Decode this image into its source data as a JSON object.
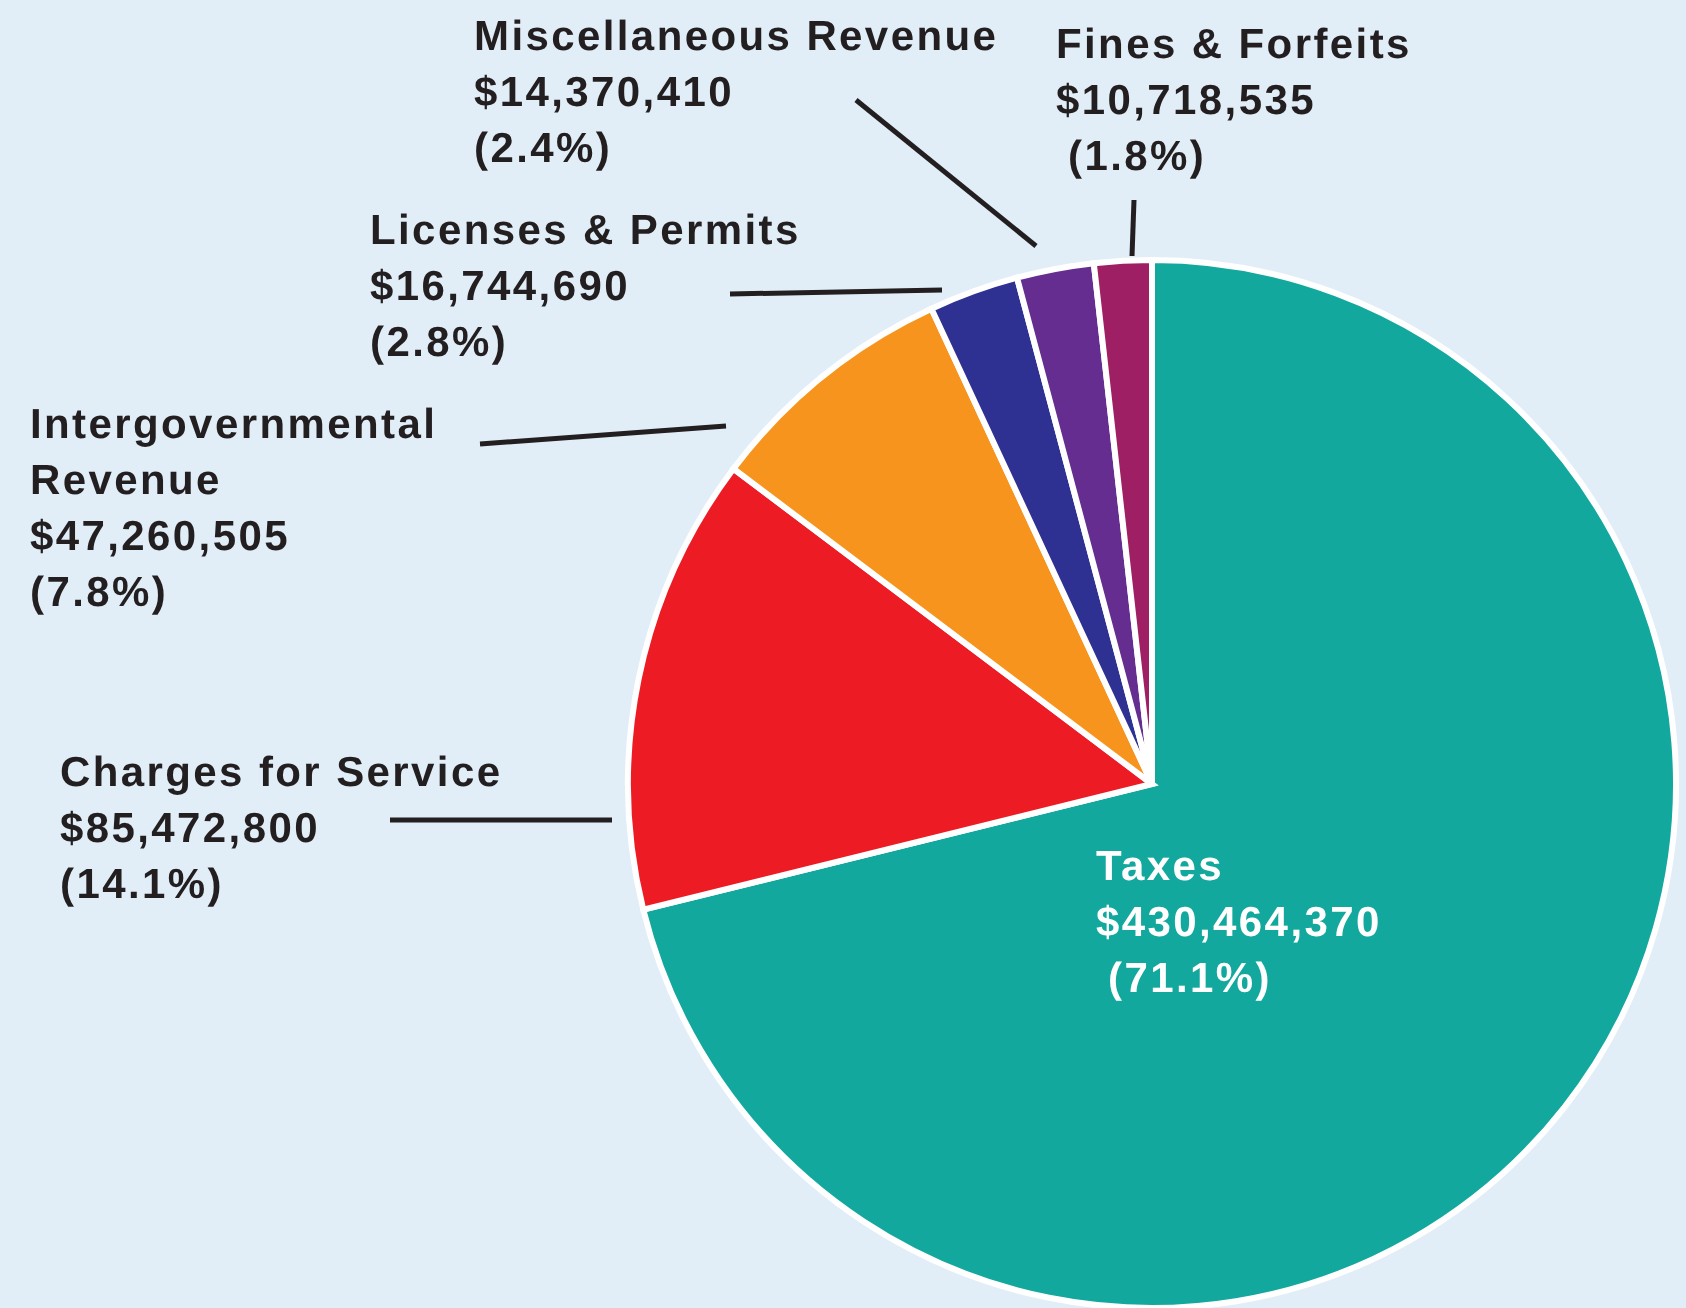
{
  "chart_data": {
    "type": "pie",
    "categories": [
      "Taxes",
      "Charges for Service",
      "Intergovernmental Revenue",
      "Licenses & Permits",
      "Miscellaneous Revenue",
      "Fines & Forfeits"
    ],
    "values": [
      430464370,
      85472800,
      47260505,
      16744690,
      14370410,
      10718535
    ],
    "colors": [
      "#13a89e",
      "#ed1c24",
      "#f7941d",
      "#2e3192",
      "#662d91",
      "#9e1f63"
    ],
    "value_labels": [
      "$430,464,370 (71.1%)",
      "$85,472,800 (14.1%)",
      "$47,260,505 (7.8%)",
      "$16,744,690 (2.8%)",
      "$14,370,410 (2.4%)",
      "$10,718,535 (1.8%)"
    ],
    "legend": false
  }
}
